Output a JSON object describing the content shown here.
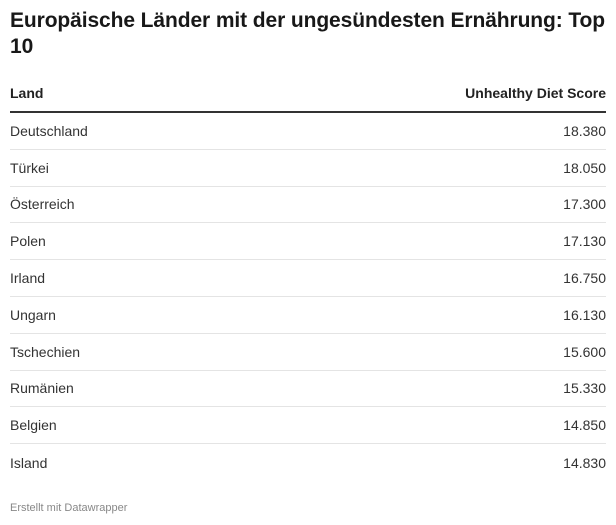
{
  "title": "Europäische Länder mit der ungesündesten Ernährung: Top 10",
  "footer": "Erstellt mit Datawrapper",
  "chart_data": {
    "type": "table",
    "columns": [
      "Land",
      "Unhealthy Diet Score"
    ],
    "rows": [
      {
        "land": "Deutschland",
        "score": "18.380"
      },
      {
        "land": "Türkei",
        "score": "18.050"
      },
      {
        "land": "Österreich",
        "score": "17.300"
      },
      {
        "land": "Polen",
        "score": "17.130"
      },
      {
        "land": "Irland",
        "score": "16.750"
      },
      {
        "land": "Ungarn",
        "score": "16.130"
      },
      {
        "land": "Tschechien",
        "score": "15.600"
      },
      {
        "land": "Rumänien",
        "score": "15.330"
      },
      {
        "land": "Belgien",
        "score": "14.850"
      },
      {
        "land": "Island",
        "score": "14.830"
      }
    ]
  }
}
